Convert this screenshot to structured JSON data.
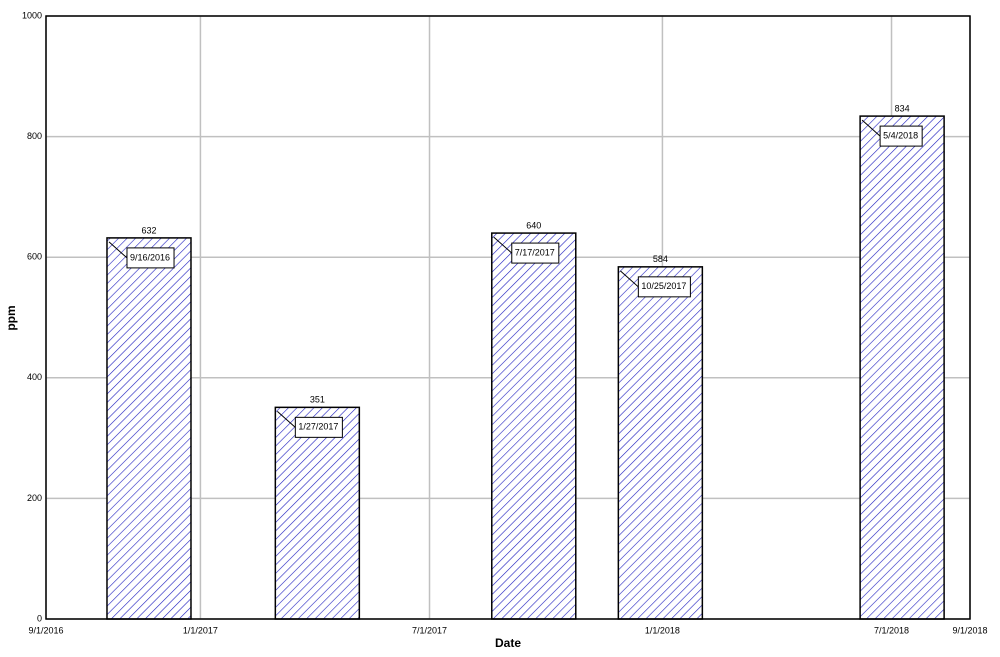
{
  "chart_data": {
    "type": "bar",
    "x_label": "Date",
    "y_label": "ppm",
    "x": [
      "9/16/2016",
      "1/27/2017",
      "7/17/2017",
      "10/25/2017",
      "5/4/2018"
    ],
    "values": [
      632,
      351,
      640,
      584,
      834
    ],
    "color": "#2020c0",
    "xlim": [
      "9/1/2016",
      "9/1/2018"
    ],
    "xticks": [
      "9/1/2016",
      "1/1/2017",
      "7/1/2017",
      "1/1/2018",
      "7/1/2018",
      "9/1/2018"
    ],
    "ylim": [
      0,
      1000
    ],
    "yticks": [
      0,
      200,
      400,
      600,
      800,
      1000
    ],
    "grid": true
  }
}
